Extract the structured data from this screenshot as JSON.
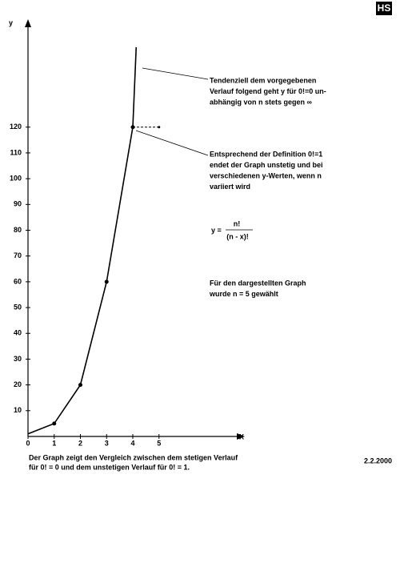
{
  "logo": "HS",
  "chart_data": {
    "type": "line",
    "y_label": "y",
    "x_label": "X",
    "xlim": [
      0,
      8
    ],
    "ylim": [
      0,
      160
    ],
    "xticks": [
      0,
      1,
      2,
      3,
      4,
      5
    ],
    "yticks": [
      10,
      20,
      30,
      40,
      50,
      60,
      70,
      80,
      90,
      100,
      110,
      120
    ],
    "color": "#000000",
    "series": [
      {
        "x": [
          0,
          1,
          2,
          3,
          4,
          4.13
        ],
        "values": [
          1,
          5,
          20,
          60,
          120,
          151
        ],
        "style": "solid"
      },
      {
        "x": [
          1,
          2,
          3,
          4
        ],
        "values": [
          5,
          20,
          60,
          120
        ],
        "style": "points"
      },
      {
        "x": [
          4,
          5
        ],
        "values": [
          120,
          120
        ],
        "style": "dashed"
      }
    ],
    "annotations": [
      [
        "Tendenziell dem vorgegebenen",
        "Verlauf folgend geht y für 0!=0 un-",
        "abhängig von n stets gegen ∞"
      ],
      [
        "Entsprechend der Definition 0!=1",
        "endet der Graph unstetig und bei",
        "verschiedenen y-Werten, wenn n",
        "variiert wird"
      ],
      [
        "Für den dargestellten Graph",
        "wurde n = 5 gewählt"
      ]
    ],
    "formula": {
      "lhs": "y =",
      "numerator": "n!",
      "denominator": "(n - x)!"
    },
    "caption": [
      "Der Graph zeigt den Vergleich zwischen dem stetigen Verlauf",
      "für 0! = 0 und dem unstetigen Verlauf für 0! = 1."
    ],
    "date": "2.2.2000"
  }
}
